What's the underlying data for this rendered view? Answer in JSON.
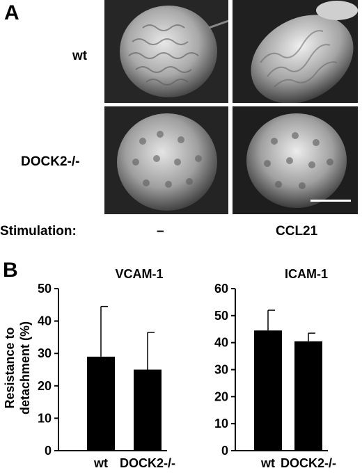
{
  "panel_a": {
    "letter": "A",
    "rows": [
      {
        "label": "wt"
      },
      {
        "label": "DOCK2-/-"
      }
    ],
    "stimulation_label": "Stimulation:",
    "conditions": [
      "–",
      "CCL21"
    ]
  },
  "panel_b": {
    "letter": "B",
    "ylabel_line1": "Resistance to",
    "ylabel_line2": "detachment (%)"
  },
  "chart_data": [
    {
      "type": "bar",
      "title": "VCAM-1",
      "categories": [
        "wt",
        "DOCK2-/-"
      ],
      "values": [
        29,
        25
      ],
      "errors": [
        15.5,
        11.5
      ],
      "ylim": [
        0,
        50
      ],
      "yticks": [
        0,
        10,
        20,
        30,
        40,
        50
      ],
      "ylabel": "Resistance to detachment (%)",
      "bar_color": "#000000"
    },
    {
      "type": "bar",
      "title": "ICAM-1",
      "categories": [
        "wt",
        "DOCK2-/-"
      ],
      "values": [
        44.5,
        40.5
      ],
      "errors": [
        7.5,
        3
      ],
      "ylim": [
        0,
        60
      ],
      "yticks": [
        0,
        10,
        20,
        30,
        40,
        50,
        60
      ],
      "ylabel": "",
      "bar_color": "#000000"
    }
  ]
}
